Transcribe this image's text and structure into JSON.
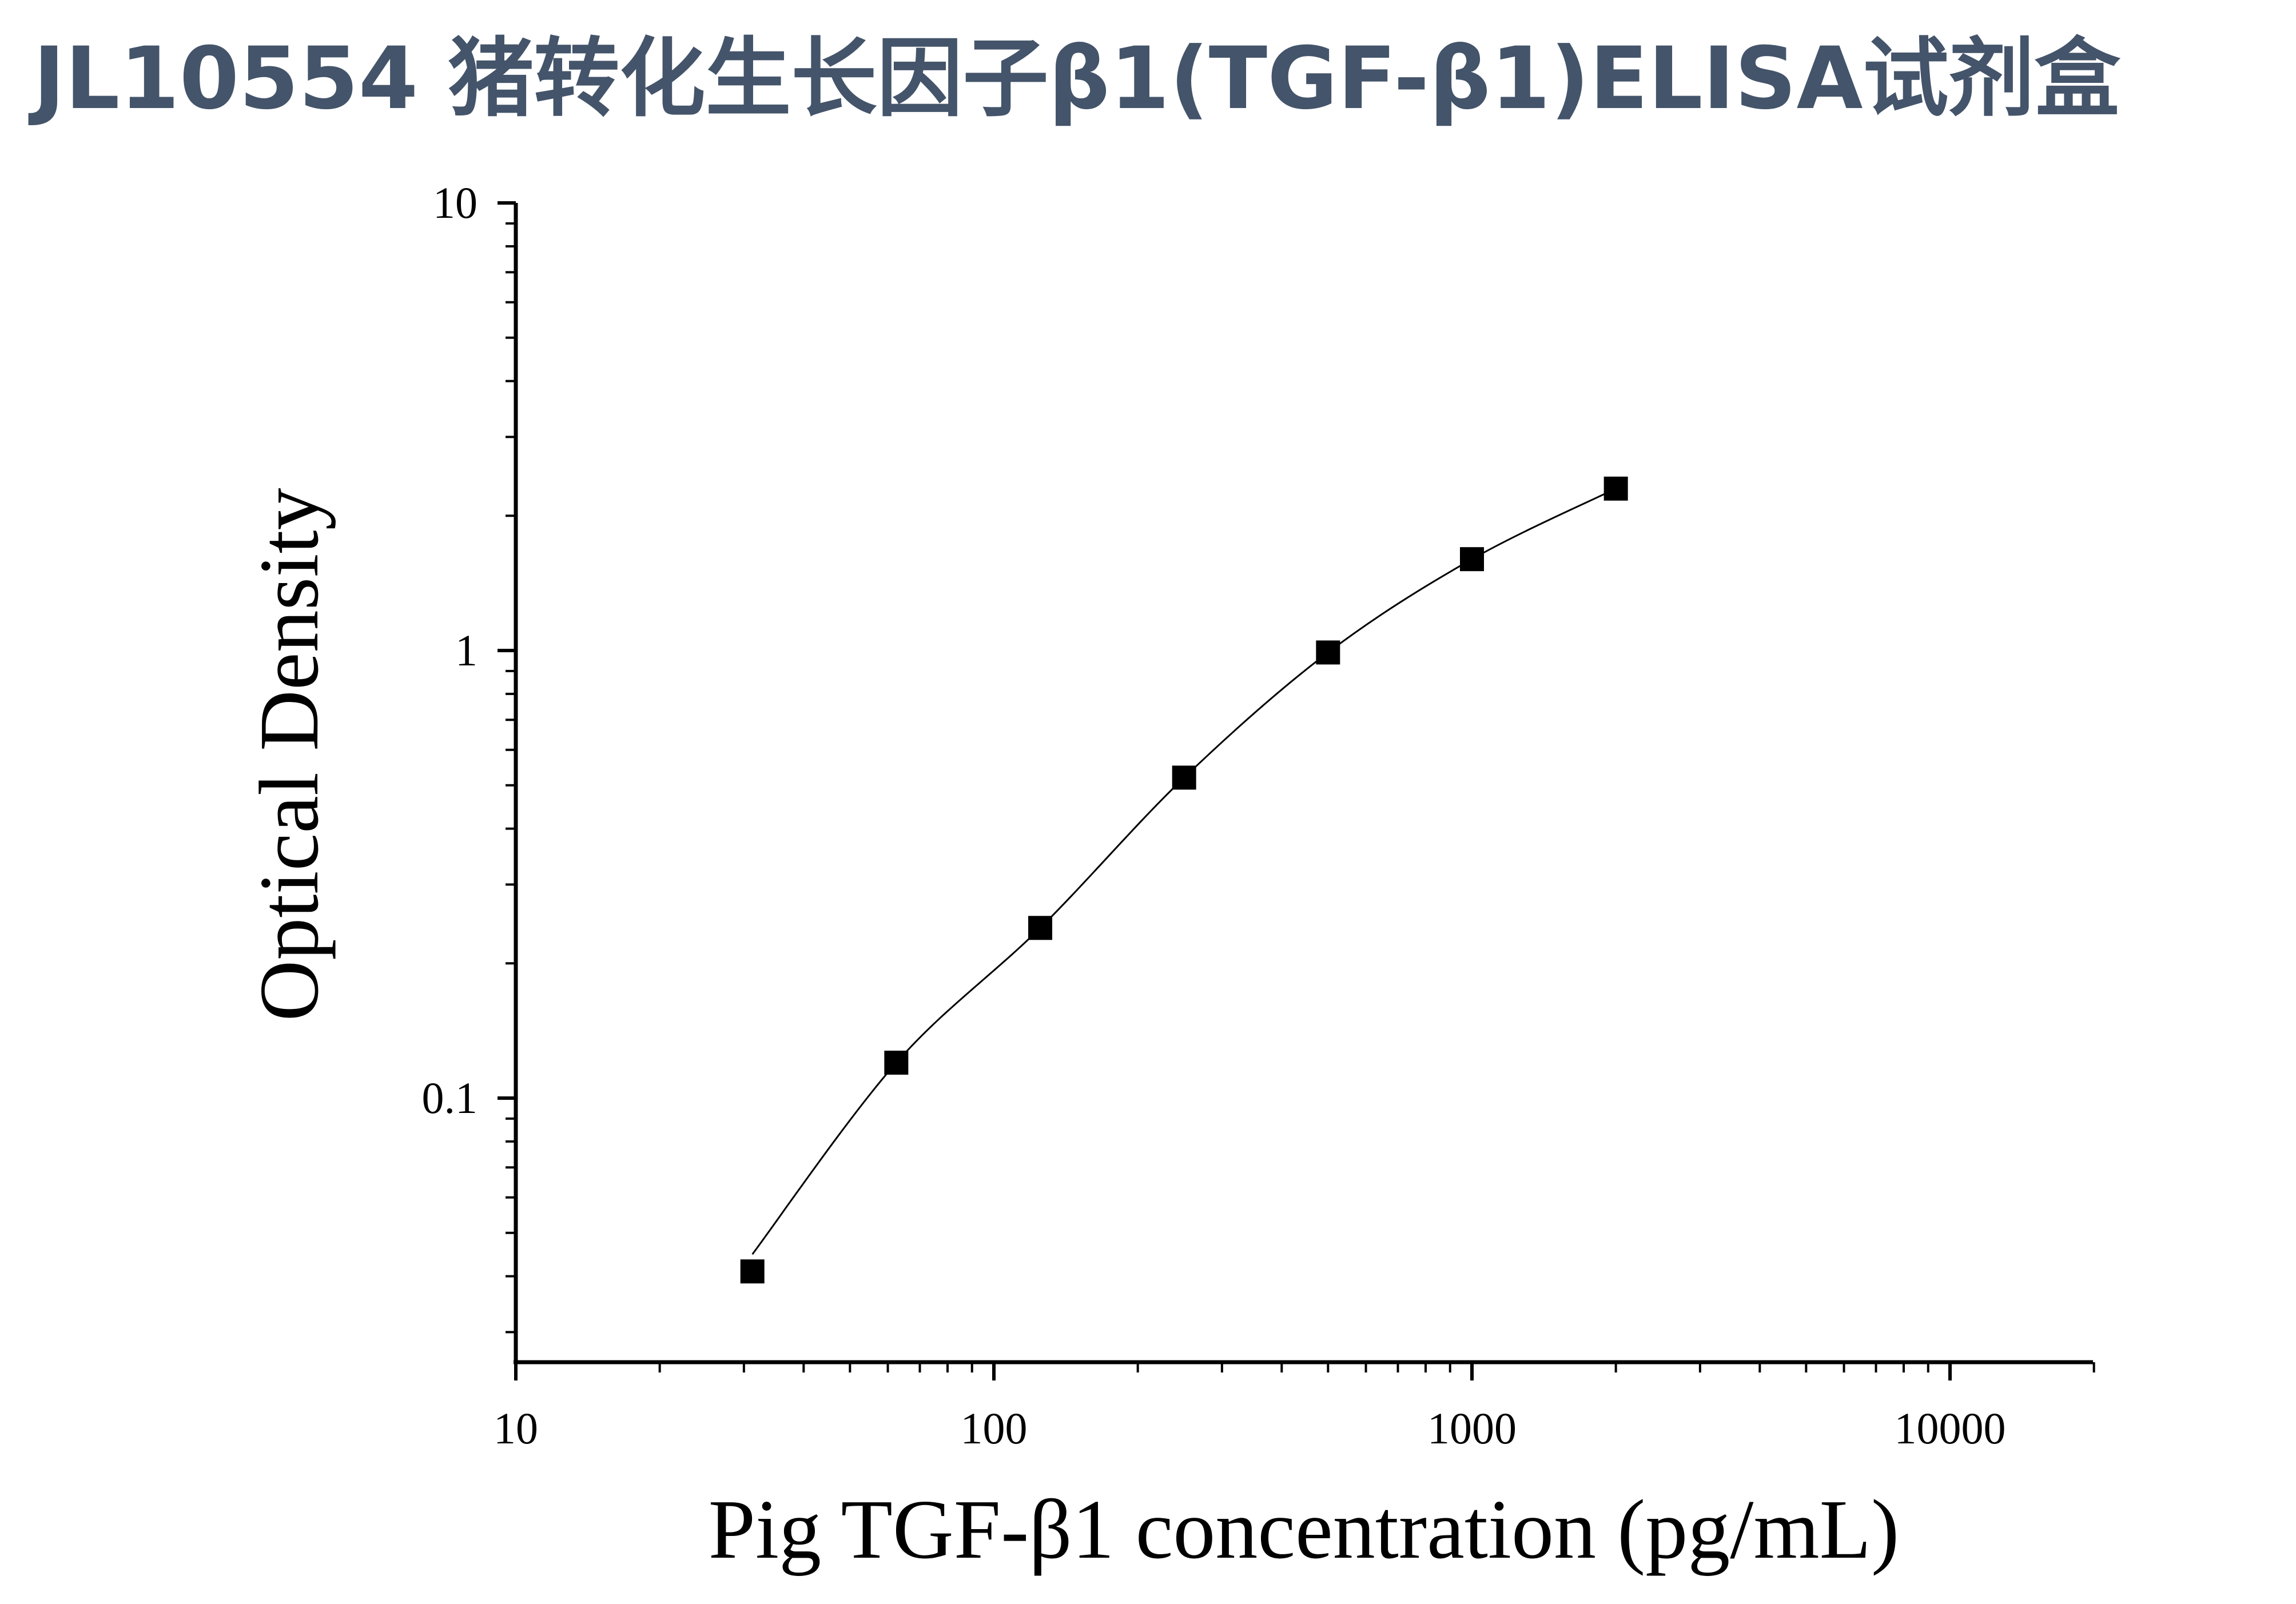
{
  "title": "JL10554 猪转化生长因子β1(TGF-β1)ELISA试剂盒",
  "chart_data": {
    "type": "scatter",
    "xlabel": "Pig TGF-β1 concentration (pg/mL)",
    "ylabel": "Optical Density",
    "x_scale": "log",
    "y_scale": "log",
    "xlim": [
      10,
      20000
    ],
    "ylim": [
      0.025,
      10
    ],
    "x_ticks": [
      "10",
      "100",
      "1000",
      "10000"
    ],
    "y_ticks": [
      "0.1",
      "1",
      "10"
    ],
    "grid": false,
    "series": [
      {
        "marker": "square",
        "fit_curve": true,
        "x": [
          31.25,
          62.5,
          125,
          250,
          500,
          1000,
          2000
        ],
        "y": [
          0.041,
          0.12,
          0.24,
          0.52,
          0.99,
          1.6,
          2.3
        ]
      }
    ],
    "colors": {
      "marker": "#000000",
      "axis": "#000000",
      "title": "#44546a"
    }
  }
}
